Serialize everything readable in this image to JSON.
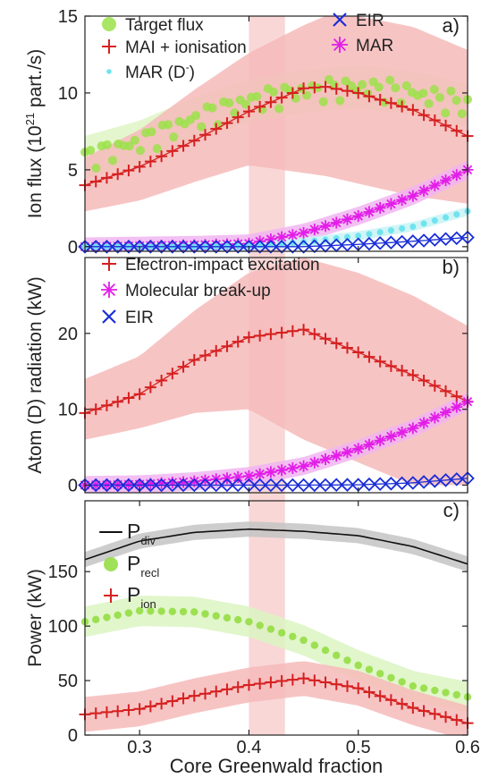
{
  "figure": {
    "xlabel": "Core Greenwald fraction",
    "x_ticks": [
      "0.3",
      "0.4",
      "0.5",
      "0.6"
    ],
    "highlight_band": {
      "x0": 0.4,
      "x1": 0.433,
      "color": "#f2a6a6"
    }
  },
  "chart_data": [
    {
      "type": "line",
      "panel": "a)",
      "ylabel_parts": [
        "Ion flux (10",
        "21",
        " part./s)"
      ],
      "xlim": [
        0.25,
        0.6
      ],
      "ylim": [
        -0.3,
        15
      ],
      "y_ticks": [
        "0",
        "5",
        "10",
        "15"
      ],
      "legend": [
        {
          "label": "Target flux",
          "color": "#9be24a",
          "marker": "circle"
        },
        {
          "label": "MAI + ionisation",
          "color": "#d62020",
          "marker": "plus"
        },
        {
          "label": "MAR (D",
          "sup": "-",
          "tail": ")",
          "color": "#6fe3ee",
          "marker": "dot"
        },
        {
          "label": "EIR",
          "color": "#1a2ed6",
          "marker": "x"
        },
        {
          "label": "MAR",
          "color": "#e21ee8",
          "marker": "star"
        }
      ],
      "series": [
        {
          "name": "Target flux",
          "color": "#9be24a",
          "band_color": "#dff5c5",
          "x": [
            0.25,
            0.3,
            0.35,
            0.4,
            0.45,
            0.5,
            0.55,
            0.6
          ],
          "y": [
            5.8,
            6.8,
            8.3,
            9.5,
            10.1,
            10.4,
            10.0,
            9.2
          ],
          "err": 1.4
        },
        {
          "name": "MAI + ionisation",
          "color": "#d62020",
          "band_color": "#f6baba",
          "x": [
            0.25,
            0.3,
            0.35,
            0.4,
            0.45,
            0.47,
            0.5,
            0.55,
            0.6
          ],
          "y": [
            4.0,
            5.2,
            6.9,
            8.8,
            10.3,
            10.4,
            10.0,
            8.9,
            7.2
          ],
          "lo": [
            2.3,
            3.0,
            4.2,
            5.3,
            4.8,
            4.6,
            4.1,
            3.3,
            2.8
          ],
          "hi": [
            5.8,
            7.6,
            10.2,
            12.6,
            14.4,
            15.0,
            15.0,
            14.3,
            12.8
          ]
        },
        {
          "name": "MAR",
          "color": "#e21ee8",
          "band_color": "#f1b5f1",
          "x": [
            0.25,
            0.3,
            0.35,
            0.4,
            0.45,
            0.5,
            0.55,
            0.6
          ],
          "y": [
            0.0,
            0.05,
            0.1,
            0.2,
            0.9,
            2.0,
            3.3,
            5.0
          ],
          "err": 0.6
        },
        {
          "name": "MAR (D-)",
          "color": "#6fe3ee",
          "band_color": "#c9f3f6",
          "x": [
            0.25,
            0.3,
            0.35,
            0.4,
            0.45,
            0.5,
            0.55,
            0.6
          ],
          "y": [
            0.0,
            0.0,
            0.0,
            0.05,
            0.3,
            0.7,
            1.3,
            2.3
          ],
          "err": 0.3
        },
        {
          "name": "EIR",
          "color": "#1a2ed6",
          "x": [
            0.25,
            0.3,
            0.35,
            0.4,
            0.45,
            0.5,
            0.55,
            0.6
          ],
          "y": [
            0.0,
            0.0,
            0.0,
            0.0,
            0.0,
            0.15,
            0.35,
            0.6
          ]
        }
      ]
    },
    {
      "type": "line",
      "panel": "b)",
      "ylabel": "Atom (D)  radiation (kW)",
      "xlim": [
        0.25,
        0.6
      ],
      "ylim": [
        -1,
        30
      ],
      "y_ticks": [
        "0",
        "10",
        "20"
      ],
      "legend": [
        {
          "label": "Electron-impact excitation",
          "color": "#d62020",
          "marker": "plus"
        },
        {
          "label": "Molecular break-up",
          "color": "#e21ee8",
          "marker": "star"
        },
        {
          "label": "EIR",
          "color": "#1a2ed6",
          "marker": "x"
        }
      ],
      "series": [
        {
          "name": "Electron-impact excitation",
          "color": "#d62020",
          "band_color": "#f6baba",
          "x": [
            0.25,
            0.3,
            0.35,
            0.4,
            0.45,
            0.5,
            0.55,
            0.6
          ],
          "y": [
            9.5,
            12.0,
            16.5,
            19.5,
            20.5,
            17.5,
            14.5,
            11.0
          ],
          "lo": [
            6.0,
            7.5,
            9.5,
            10.0,
            6.0,
            3.0,
            0.0,
            0.0
          ],
          "hi": [
            14.0,
            17.0,
            23.0,
            28.0,
            30.0,
            28.0,
            25.0,
            21.0
          ]
        },
        {
          "name": "Molecular break-up",
          "color": "#e21ee8",
          "band_color": "#f1b5f1",
          "x": [
            0.25,
            0.3,
            0.35,
            0.4,
            0.45,
            0.5,
            0.55,
            0.6
          ],
          "y": [
            0.0,
            0.1,
            0.5,
            1.2,
            2.5,
            4.8,
            7.5,
            11.0
          ],
          "err": 1.2
        },
        {
          "name": "EIR",
          "color": "#1a2ed6",
          "x": [
            0.25,
            0.3,
            0.35,
            0.4,
            0.45,
            0.5,
            0.55,
            0.6
          ],
          "y": [
            0.0,
            0.0,
            0.0,
            0.0,
            0.0,
            0.05,
            0.3,
            0.9
          ]
        }
      ]
    },
    {
      "type": "line",
      "panel": "c)",
      "ylabel": "Power (kW)",
      "xlim": [
        0.25,
        0.6
      ],
      "ylim": [
        0,
        215
      ],
      "y_ticks": [
        "0",
        "50",
        "100",
        "150"
      ],
      "legend": [
        {
          "label": "P",
          "sub": "div",
          "color": "#111111",
          "marker": "line"
        },
        {
          "label": "P",
          "sub": "recl",
          "color": "#8fdc3c",
          "marker": "circle"
        },
        {
          "label": "P",
          "sub": "ion",
          "color": "#d62020",
          "marker": "plus"
        }
      ],
      "series": [
        {
          "name": "P div",
          "color": "#111111",
          "band_color": "#c4c4c4",
          "x": [
            0.25,
            0.3,
            0.35,
            0.4,
            0.45,
            0.5,
            0.55,
            0.6
          ],
          "y": [
            161,
            178,
            186,
            189,
            187,
            183,
            173,
            157
          ],
          "err": 7
        },
        {
          "name": "P recl",
          "color": "#8fdc3c",
          "band_color": "#dcf4c2",
          "x": [
            0.25,
            0.3,
            0.35,
            0.4,
            0.45,
            0.5,
            0.55,
            0.6
          ],
          "y": [
            104,
            114,
            113,
            104,
            87,
            64,
            45,
            35
          ],
          "err": 14
        },
        {
          "name": "P ion",
          "color": "#d62020",
          "band_color": "#f6baba",
          "x": [
            0.25,
            0.3,
            0.35,
            0.4,
            0.45,
            0.5,
            0.55,
            0.6
          ],
          "y": [
            19,
            24,
            36,
            46,
            52,
            43,
            25,
            11
          ],
          "err": 16
        }
      ]
    }
  ]
}
